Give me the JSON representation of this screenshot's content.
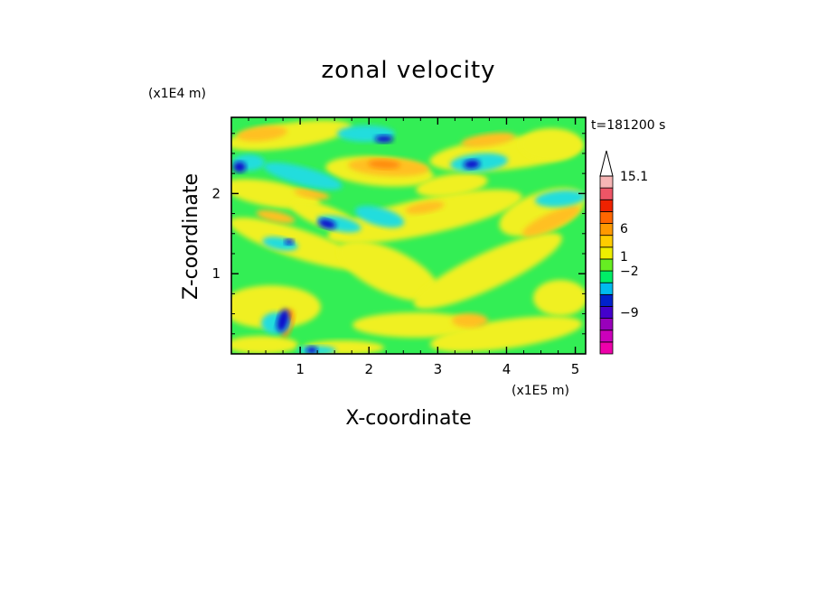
{
  "chart_data": {
    "type": "heatmap",
    "title": "zonal velocity",
    "xlabel": "X-coordinate",
    "ylabel": "Z-coordinate",
    "x_unit": "(x1E5 m)",
    "y_unit": "(x1E4 m)",
    "time_label": "t=181200 s",
    "xlim": [
      0,
      5.15
    ],
    "ylim": [
      0,
      2.95
    ],
    "x_ticks": [
      {
        "value": 1,
        "label": "1"
      },
      {
        "value": 2,
        "label": "2"
      },
      {
        "value": 3,
        "label": "3"
      },
      {
        "value": 4,
        "label": "4"
      },
      {
        "value": 5,
        "label": "5"
      }
    ],
    "y_ticks": [
      {
        "value": 1,
        "label": "1"
      },
      {
        "value": 2,
        "label": "2"
      }
    ],
    "colorbar": {
      "levels": [
        {
          "color": "#ee00aa"
        },
        {
          "color": "#cc00bb"
        },
        {
          "color": "#9900bb"
        },
        {
          "color": "#4400cc"
        },
        {
          "color": "#0022cc"
        },
        {
          "color": "#00bbee"
        },
        {
          "color": "#00ee66"
        },
        {
          "color": "#66ee22"
        },
        {
          "color": "#eeee00"
        },
        {
          "color": "#ffcc00"
        },
        {
          "color": "#ff9900"
        },
        {
          "color": "#ff6600"
        },
        {
          "color": "#ee2200"
        },
        {
          "color": "#ee5566"
        },
        {
          "color": "#f7b5b5"
        }
      ],
      "labels": [
        "15.1",
        "6",
        "1",
        "−2",
        "−9"
      ]
    },
    "field_colors": {
      "background": "#33ee55",
      "positive_weak": "#f0f022",
      "positive_mid": "#ffc020",
      "positive_strong": "#ff8c10",
      "negative_weak": "#22dddd",
      "negative_strong": "#1010cc"
    }
  }
}
